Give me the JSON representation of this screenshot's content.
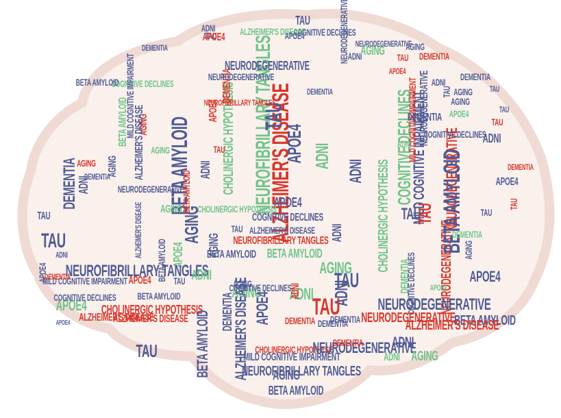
{
  "colors": {
    "red": "#d8372c",
    "blue": "#4f5b94",
    "green": "#6fc489",
    "brain_fill": "#faf0ec",
    "brain_stroke": "#f0dad4"
  },
  "words": [
    {
      "text": "ALZHEIMER'S DISEASE",
      "color": "red"
    },
    {
      "text": "NEUROFIBRILLARY TANGLES",
      "color": "green"
    },
    {
      "text": "TAU",
      "color": "blue"
    },
    {
      "text": "APOE4",
      "color": "blue"
    },
    {
      "text": "ADNI",
      "color": "green"
    },
    {
      "text": "COGNITIVE DECLINES",
      "color": "green"
    },
    {
      "text": "MILD COGNITIVE IMPAIRMENT",
      "color": "blue"
    },
    {
      "text": "NEURODEGENERATIVE",
      "color": "red"
    },
    {
      "text": "BETA AMYLOID",
      "color": "blue"
    },
    {
      "text": "AGING",
      "color": "blue"
    },
    {
      "text": "DEMENTIA",
      "color": "blue"
    },
    {
      "text": "CHOLINERGIC HYPOTHESIS",
      "color": "green"
    },
    {
      "text": "NEUROFIBRILLARY TANGLES",
      "color": "red"
    },
    {
      "text": "APOE4",
      "color": "blue"
    },
    {
      "text": "COGNITIVE DECLINES",
      "color": "blue"
    },
    {
      "text": "ALZHEIMER'S DISEASE",
      "color": "blue"
    },
    {
      "text": "NEURODEGENERATIVE",
      "color": "blue"
    },
    {
      "text": "AGING",
      "color": "green"
    },
    {
      "text": "TAU",
      "color": "blue"
    },
    {
      "text": "ADNI",
      "color": "blue"
    },
    {
      "text": "TAU",
      "color": "red"
    },
    {
      "text": "ADNI",
      "color": "blue"
    },
    {
      "text": "BETA AMYLOID",
      "color": "blue"
    },
    {
      "text": "APOE4",
      "color": "green"
    },
    {
      "text": "AGING",
      "color": "blue"
    },
    {
      "text": "DEMENTIA",
      "color": "green"
    },
    {
      "text": "ADNI",
      "color": "blue"
    },
    {
      "text": "TAU",
      "color": "red"
    },
    {
      "text": "NEURODEGENERATIVE",
      "color": "red"
    },
    {
      "text": "BETA AMYLOID",
      "color": "blue"
    },
    {
      "text": "APOE4",
      "color": "green"
    },
    {
      "text": "ADNI",
      "color": "green"
    },
    {
      "text": "TAU",
      "color": "blue"
    },
    {
      "text": "DEMENTIA",
      "color": "blue"
    },
    {
      "text": "COGNITIVE DECLINES",
      "color": "blue"
    },
    {
      "text": "BETA AMYLOID",
      "color": "green"
    },
    {
      "text": "ALZHEIMER'S DISEASE",
      "color": "red"
    },
    {
      "text": "CHOLINERGIC HYPOTHESIS",
      "color": "red"
    },
    {
      "text": "NEUROFIBRILLARY TANGLES",
      "color": "blue"
    },
    {
      "text": "MILD COGNITIVE IMPAIRMENT",
      "color": "blue"
    },
    {
      "text": "AGING",
      "color": "blue"
    },
    {
      "text": "APOE4",
      "color": "blue"
    },
    {
      "text": "BETA AMYLOID",
      "color": "blue"
    },
    {
      "text": "ADNI",
      "color": "red"
    },
    {
      "text": "AGING",
      "color": "red"
    },
    {
      "text": "NEURODEGENERATIVE",
      "color": "blue"
    },
    {
      "text": "DEMENTIA",
      "color": "blue"
    },
    {
      "text": "TAU",
      "color": "blue"
    },
    {
      "text": "ALZHEIMER'S DISEASE",
      "color": "blue"
    },
    {
      "text": "BETA AMYLOID",
      "color": "green"
    },
    {
      "text": "APOE4",
      "color": "green"
    },
    {
      "text": "AGING",
      "color": "green"
    },
    {
      "text": "TAU",
      "color": "blue"
    },
    {
      "text": "MILD COGNITIVE IMPAIRMENT",
      "color": "blue"
    },
    {
      "text": "CHOLINERGIC HYPOTHESIS",
      "color": "red"
    },
    {
      "text": "ALZHEIMER'S DISEASE",
      "color": "red"
    },
    {
      "text": "AGING",
      "color": "blue"
    },
    {
      "text": "DEMENTIA",
      "color": "red"
    },
    {
      "text": "NEURODEGENERATIVE",
      "color": "blue"
    },
    {
      "text": "DEMENTIA",
      "color": "red"
    },
    {
      "text": "ADNI",
      "color": "blue"
    },
    {
      "text": "DEMENTIA",
      "color": "blue"
    },
    {
      "text": "ADNI",
      "color": "green"
    },
    {
      "text": "NEURODEGENERATIVE",
      "color": "red"
    },
    {
      "text": "BETA AMYLOID",
      "color": "blue"
    },
    {
      "text": "CHOLINERGIC HYPOTHESIS",
      "color": "green"
    },
    {
      "text": "DEMENTIA",
      "color": "green"
    },
    {
      "text": "BETA AMYLOID",
      "color": "blue"
    },
    {
      "text": "ALZHEIMER'S DISEASE",
      "color": "red"
    },
    {
      "text": "AGING",
      "color": "green"
    },
    {
      "text": "TAU",
      "color": "blue"
    },
    {
      "text": "ADNI",
      "color": "blue"
    },
    {
      "text": "TAU",
      "color": "red"
    },
    {
      "text": "ADNI",
      "color": "green"
    },
    {
      "text": "DEMENTIA",
      "color": "red"
    },
    {
      "text": "COGNITIVE DECLINES",
      "color": "blue"
    },
    {
      "text": "APOE4",
      "color": "blue"
    },
    {
      "text": "NEURODEGENERATIVE",
      "color": "blue"
    },
    {
      "text": "TAU",
      "color": "red"
    },
    {
      "text": "APOE4",
      "color": "blue"
    },
    {
      "text": "MILD COGNITIVE IMPAIRMENT",
      "color": "red"
    },
    {
      "text": "DEMENTIA",
      "color": "blue"
    },
    {
      "text": "TAU",
      "color": "blue"
    },
    {
      "text": "AGING",
      "color": "blue"
    },
    {
      "text": "APOE4",
      "color": "green"
    },
    {
      "text": "TAU",
      "color": "blue"
    },
    {
      "text": "ADNI",
      "color": "blue"
    },
    {
      "text": "AGING",
      "color": "blue"
    },
    {
      "text": "DEMENTIA",
      "color": "blue"
    },
    {
      "text": "TAU",
      "color": "blue"
    },
    {
      "text": "COGNITIVE DECLINES",
      "color": "blue"
    },
    {
      "text": "NEURODEGENERATIVE",
      "color": "blue"
    },
    {
      "text": "ALZHEIMER'S DISEASE",
      "color": "green"
    },
    {
      "text": "APOE4",
      "color": "blue"
    },
    {
      "text": "TAU",
      "color": "blue"
    },
    {
      "text": "DEMENTIA",
      "color": "blue"
    },
    {
      "text": "ADNI",
      "color": "blue"
    },
    {
      "text": "AGING",
      "color": "green"
    },
    {
      "text": "NEURODEGENERATIVE",
      "color": "blue"
    },
    {
      "text": "TAU",
      "color": "red"
    },
    {
      "text": "AGING",
      "color": "blue"
    },
    {
      "text": "DEMENTIA",
      "color": "red"
    },
    {
      "text": "APOE4",
      "color": "red"
    },
    {
      "text": "ADNI",
      "color": "blue"
    },
    {
      "text": "TAU",
      "color": "blue"
    },
    {
      "text": "APOE4",
      "color": "red"
    },
    {
      "text": "DEMENTIA",
      "color": "blue"
    },
    {
      "text": "COGNITIVE DECLINES",
      "color": "green"
    },
    {
      "text": "MILD COGNITIVE IMPAIRMENT",
      "color": "blue"
    },
    {
      "text": "BETA AMYLOID",
      "color": "blue"
    },
    {
      "text": "ALZHEIMER'S DISEASE",
      "color": "blue"
    },
    {
      "text": "AGING",
      "color": "green"
    },
    {
      "text": "AGING",
      "color": "blue"
    },
    {
      "text": "CHOLINERGIC HYPOTHESIS",
      "color": "green"
    },
    {
      "text": "NEUROFIBRILLARY TANGLES",
      "color": "red"
    },
    {
      "text": "NEURODEGENERATIVE",
      "color": "blue"
    },
    {
      "text": "AGING",
      "color": "green"
    },
    {
      "text": "TAU",
      "color": "blue"
    },
    {
      "text": "ADNI",
      "color": "blue"
    },
    {
      "text": "APOE4",
      "color": "blue"
    },
    {
      "text": "DEMENTIA",
      "color": "red"
    },
    {
      "text": "COGNITIVE DECLINES",
      "color": "blue"
    },
    {
      "text": "NEUROFIBRILLARY TANGLES",
      "color": "blue"
    },
    {
      "text": "BETA AMYLOID",
      "color": "blue"
    },
    {
      "text": "APOE4",
      "color": "red"
    },
    {
      "text": "TAU",
      "color": "blue"
    },
    {
      "text": "ADNI",
      "color": "green"
    },
    {
      "text": "AGING",
      "color": "blue"
    },
    {
      "text": "DEMENTIA",
      "color": "blue"
    },
    {
      "text": "BETA AMYLOID",
      "color": "blue"
    },
    {
      "text": "ALZHEIMER'S DISEASE",
      "color": "blue"
    },
    {
      "text": "APOE4",
      "color": "blue"
    },
    {
      "text": "COGNITIVE DECLINES",
      "color": "blue"
    },
    {
      "text": "TAU",
      "color": "blue"
    },
    {
      "text": "ADNI",
      "color": "blue"
    },
    {
      "text": "TAU",
      "color": "red"
    },
    {
      "text": "APOE4",
      "color": "red"
    },
    {
      "text": "DEMENTIA",
      "color": "red"
    },
    {
      "text": "NEURODEGENERATIVE",
      "color": "blue"
    },
    {
      "text": "BETA AMYLOID",
      "color": "red"
    },
    {
      "text": "AGING",
      "color": "red"
    },
    {
      "text": "ADNI",
      "color": "blue"
    }
  ]
}
